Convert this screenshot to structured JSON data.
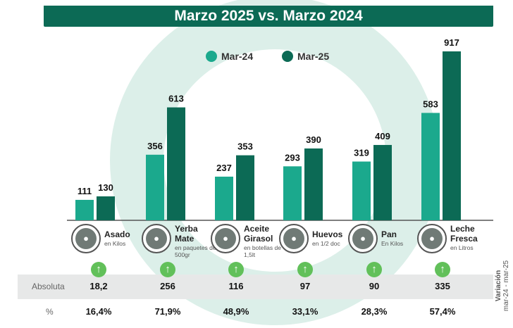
{
  "chart_data": {
    "type": "bar",
    "title": "Marzo 2025 vs. Marzo 2024",
    "categories": [
      "Asado",
      "Yerba Mate",
      "Aceite Girasol",
      "Huevos",
      "Pan",
      "Leche Fresca"
    ],
    "units": [
      "en Kilos",
      "en paquetes de 500gr",
      "en botellas de 1,5lt",
      "en 1/2 doc",
      "En Kilos",
      "en Litros"
    ],
    "icons": [
      "meat-icon",
      "yerba-package-icon",
      "oil-bottle-icon",
      "eggs-icon",
      "bread-icon",
      "milk-icon"
    ],
    "series": [
      {
        "name": "Mar-24",
        "color": "#1ba98d",
        "values": [
          111,
          356,
          237,
          293,
          319,
          583
        ]
      },
      {
        "name": "Mar-25",
        "color": "#0c6a55",
        "values": [
          130,
          613,
          353,
          390,
          409,
          917
        ]
      }
    ],
    "legend_position": "top",
    "grid": false
  },
  "variation": {
    "label": "Variación",
    "sublabel": "mar-24 - mar-25",
    "absolute_label": "Absoluta",
    "percent_label": "%",
    "absolute": [
      "18,2",
      "256",
      "116",
      "97",
      "90",
      "335"
    ],
    "percent": [
      "16,4%",
      "71,9%",
      "48,9%",
      "33,1%",
      "28,3%",
      "57,4%"
    ],
    "trend": "up",
    "arrow_color": "#62c05a"
  }
}
